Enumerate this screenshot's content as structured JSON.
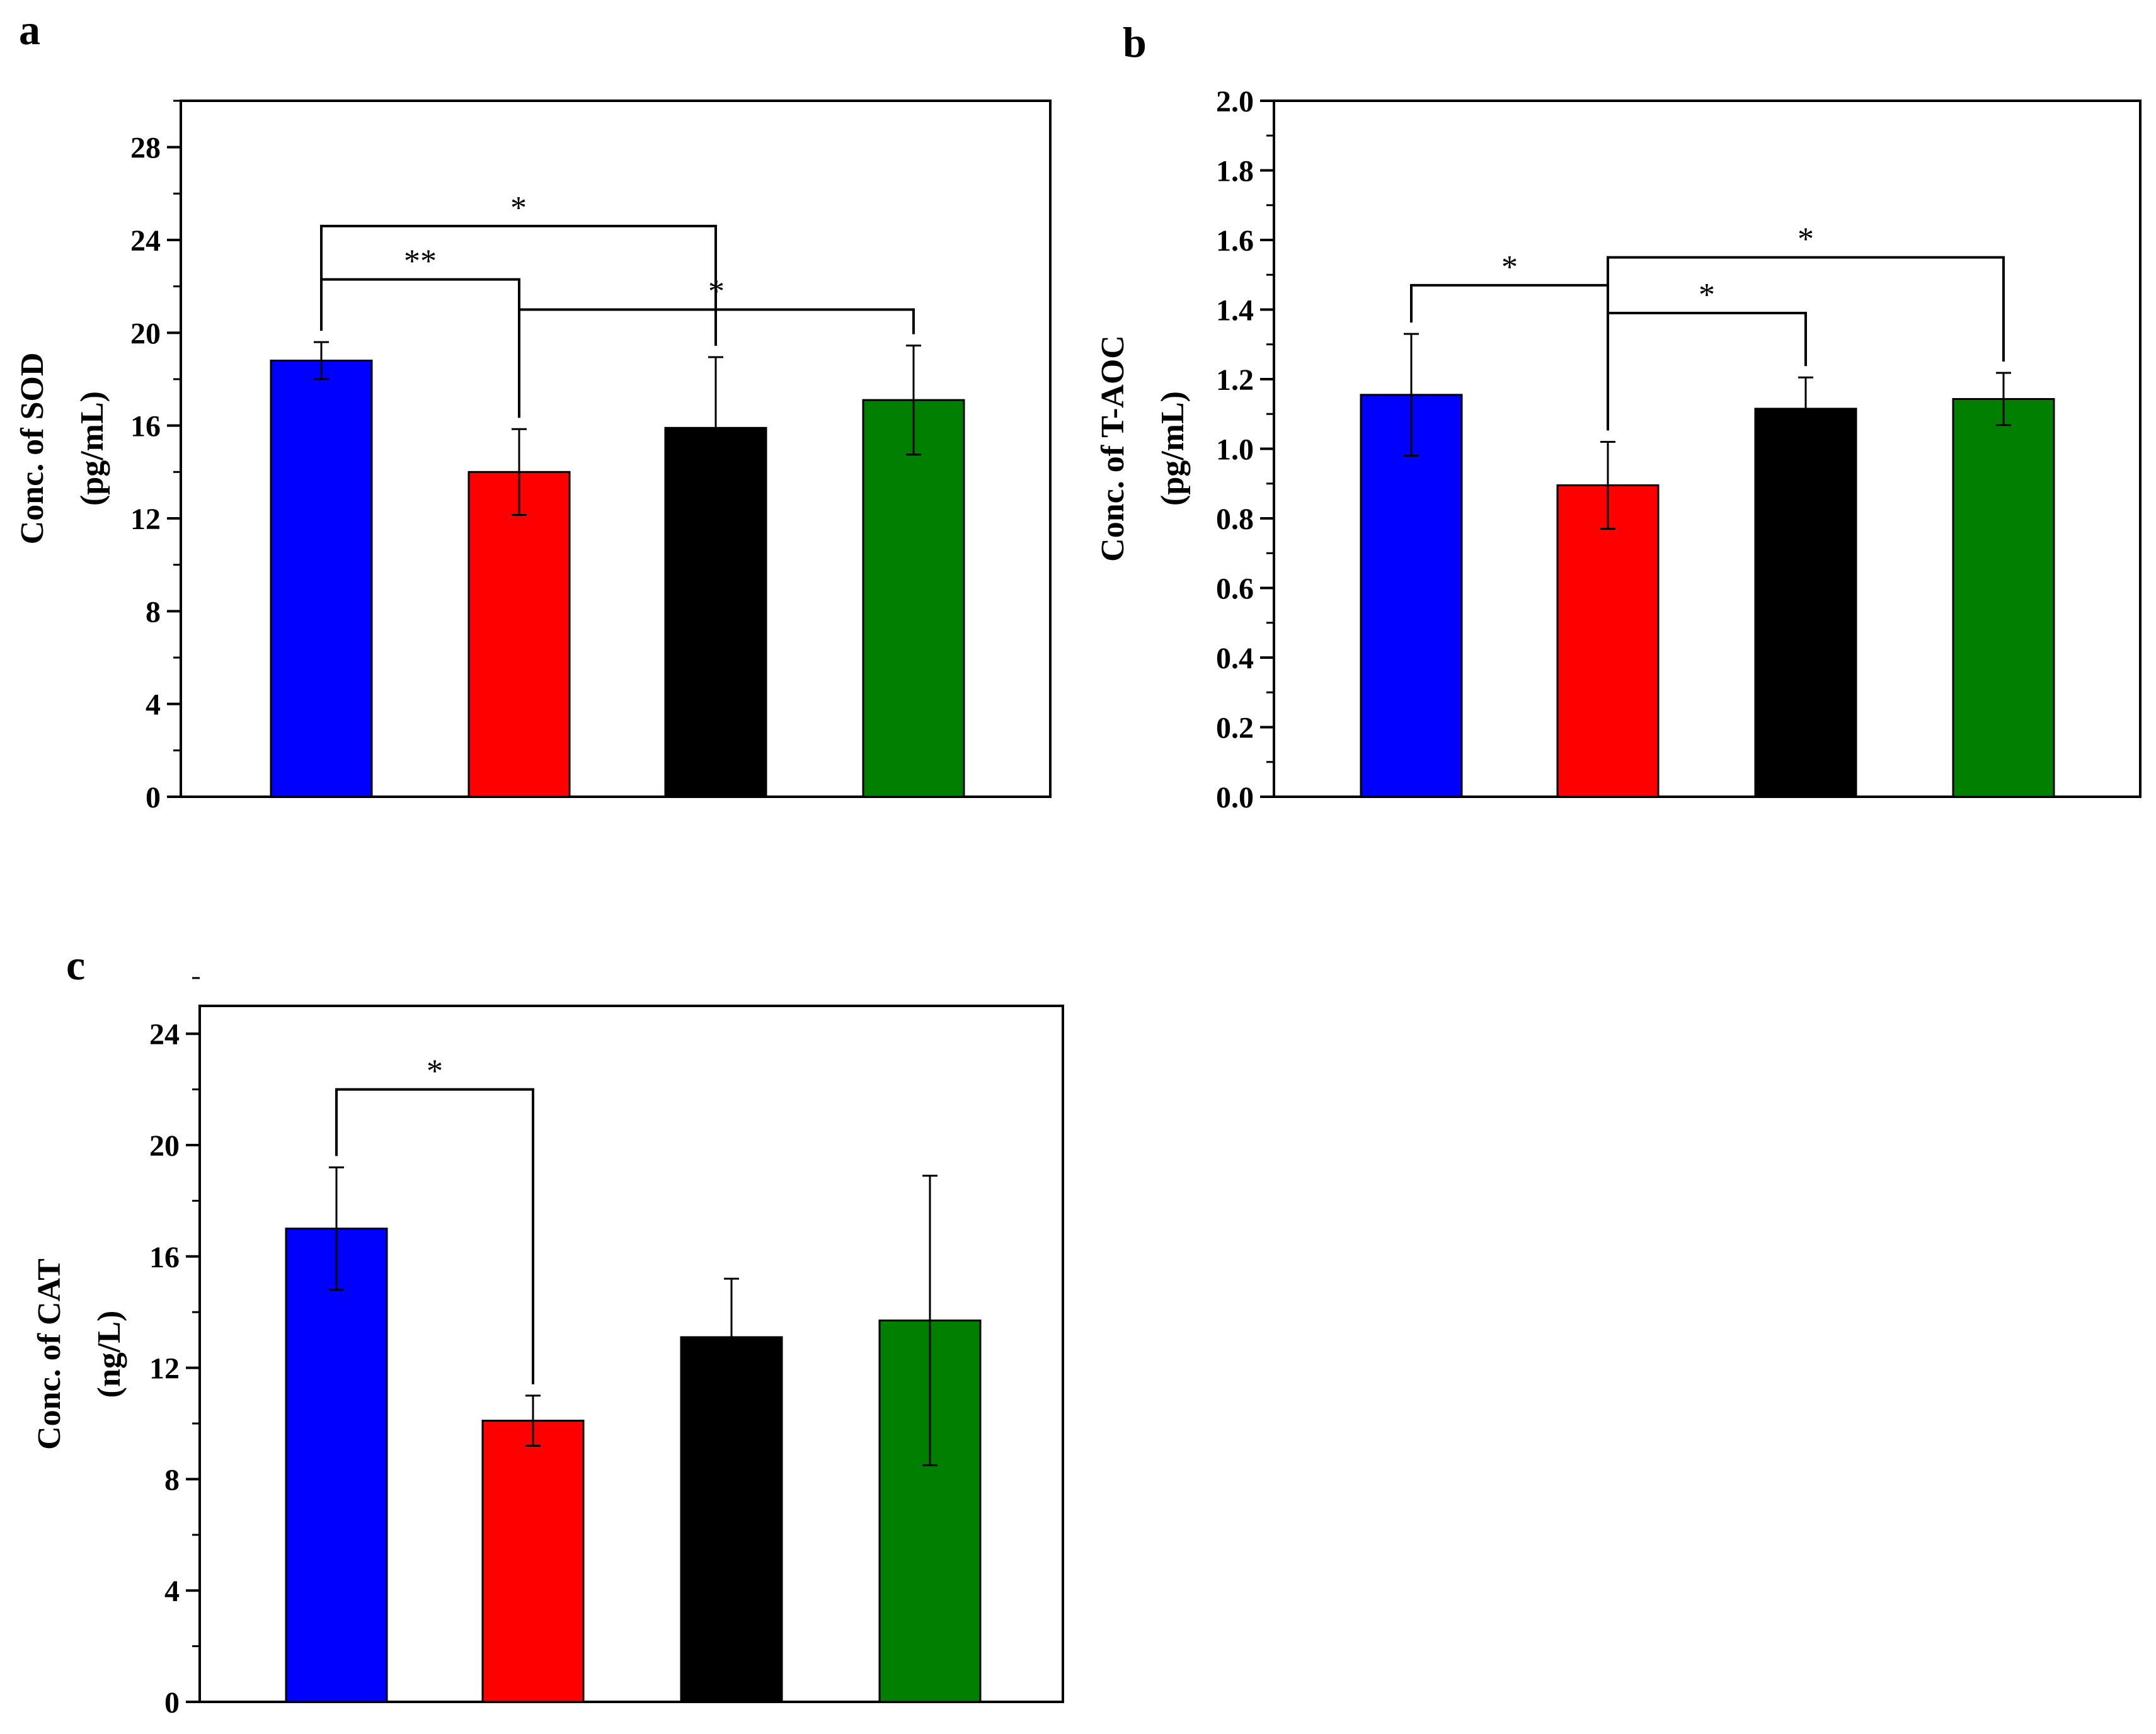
{
  "colors": {
    "group1": "#0000ff",
    "group2": "#ff0000",
    "group3": "#000000",
    "group4": "#007f00"
  },
  "chart_data": [
    {
      "panel": "a",
      "type": "bar",
      "ylabel_line1": "Conc. of SOD",
      "ylabel_line2": "(pg/mL)",
      "ylim": [
        0,
        30
      ],
      "yticks": [
        0,
        4,
        8,
        12,
        16,
        20,
        24,
        28
      ],
      "tick_decimals": 0,
      "minor_step": 2,
      "values": [
        18.8,
        14.0,
        15.9,
        17.1
      ],
      "errors": [
        0.8,
        1.85,
        3.05,
        2.35
      ],
      "significance": [
        {
          "label": "**",
          "from": 0,
          "to": 1,
          "y": 22.3
        },
        {
          "label": "*",
          "from": 0,
          "to": 2,
          "y": 24.6
        },
        {
          "label": "*",
          "from": 1,
          "to": 3,
          "y": 21.0
        }
      ]
    },
    {
      "panel": "b",
      "type": "bar",
      "ylabel_line1": "Conc. of T-AOC",
      "ylabel_line2": "(pg/mL)",
      "ylim": [
        0,
        2.0
      ],
      "yticks": [
        0.0,
        0.2,
        0.4,
        0.6,
        0.8,
        1.0,
        1.2,
        1.4,
        1.6,
        1.8,
        2.0
      ],
      "tick_decimals": 1,
      "minor_step": 0.1,
      "values": [
        1.155,
        0.895,
        1.115,
        1.143
      ],
      "errors": [
        0.175,
        0.125,
        0.09,
        0.075
      ],
      "significance": [
        {
          "label": "*",
          "from": 0,
          "to": 1,
          "y": 1.47
        },
        {
          "label": "*",
          "from": 1,
          "to": 3,
          "y": 1.55
        },
        {
          "label": "*",
          "from": 1,
          "to": 2,
          "y": 1.39
        }
      ]
    },
    {
      "panel": "c",
      "type": "bar",
      "ylabel_line1": "Conc. of CAT",
      "ylabel_line2": "(ng/L)",
      "ylim": [
        0,
        25
      ],
      "yticks": [
        0,
        4,
        8,
        12,
        16,
        20,
        24
      ],
      "tick_decimals": 0,
      "minor_step": 2,
      "values": [
        17.0,
        10.1,
        13.1,
        13.7
      ],
      "errors": [
        2.2,
        0.9,
        2.1,
        5.2
      ],
      "significance": [
        {
          "label": "*",
          "from": 0,
          "to": 1,
          "y": 22.0
        }
      ]
    }
  ]
}
